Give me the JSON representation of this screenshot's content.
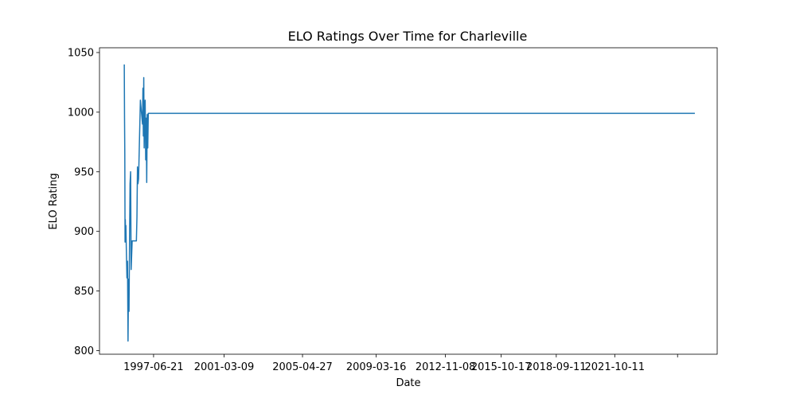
{
  "chart_data": {
    "type": "line",
    "title": "ELO Ratings Over Time for Charleville",
    "xlabel": "Date",
    "ylabel": "ELO Rating",
    "xlim": [
      "1994-08-15",
      "2027-03-06"
    ],
    "ylim": [
      797,
      1054
    ],
    "x_ticks": [
      "1997-06-21",
      "2001-03-09",
      "2005-04-27",
      "2009-03-16",
      "2012-11-08",
      "2015-10-17",
      "2018-09-11",
      "2021-10-11",
      ""
    ],
    "x_tick_dates": [
      "1997-06-21",
      "2001-03-09",
      "2005-04-27",
      "2009-03-16",
      "2012-11-08",
      "2015-10-17",
      "2018-09-11",
      "2021-10-11",
      "2025-02-01"
    ],
    "y_ticks": [
      800,
      850,
      900,
      950,
      1000,
      1050
    ],
    "grid": false,
    "color": "#1f77b4",
    "series": [
      {
        "x": [
          "1995-12-05",
          "1995-12-10",
          "1995-12-15",
          "1995-12-20",
          "1995-12-25",
          "1995-12-30",
          "1996-01-05",
          "1996-01-15",
          "1996-01-25",
          "1996-02-05",
          "1996-02-15",
          "1996-02-25",
          "1996-03-05",
          "1996-03-15",
          "1996-03-25",
          "1996-04-05",
          "1996-04-15",
          "1996-04-25",
          "1996-05-05",
          "1996-05-15",
          "1996-05-25",
          "1996-06-05",
          "1996-06-15",
          "1996-06-25",
          "1996-07-05",
          "1996-07-15",
          "1996-07-25",
          "1996-08-05",
          "1996-08-15",
          "1996-08-25",
          "1996-09-05",
          "1996-10-10",
          "1996-11-20",
          "1996-11-28",
          "1996-12-06",
          "1996-12-14",
          "1996-12-22",
          "1997-01-01",
          "1997-01-10",
          "1997-01-20",
          "1997-01-30",
          "1997-02-09",
          "1997-02-19",
          "1997-03-01",
          "1997-03-11",
          "1997-03-21",
          "1997-03-31",
          "1997-04-10",
          "1997-04-20",
          "1997-04-30",
          "1997-05-10",
          "1997-05-20",
          "1997-05-30",
          "1997-06-09",
          "1997-06-19",
          "1997-06-29",
          "1997-07-09",
          "2025-12-31"
        ],
        "y": [
          1040,
          995,
          965,
          891,
          910,
          897,
          905,
          882,
          861,
          875,
          808,
          860,
          833,
          890,
          940,
          950,
          868,
          880,
          892,
          892,
          892,
          892,
          892,
          892,
          892,
          892,
          892,
          912,
          954,
          940,
          944,
          1010,
          990,
          1020,
          980,
          1029,
          970,
          1000,
          1010,
          960,
          995,
          941,
          998,
          970,
          999,
          999,
          999,
          999,
          999,
          999,
          999,
          999,
          999,
          999,
          999,
          999,
          999,
          999
        ]
      }
    ]
  }
}
